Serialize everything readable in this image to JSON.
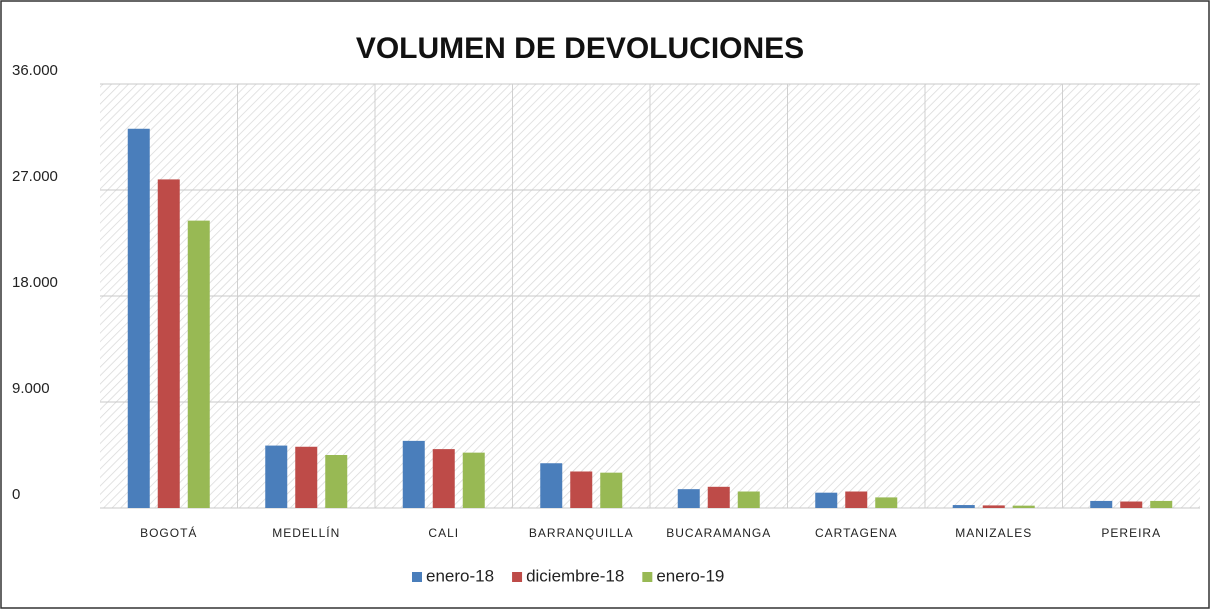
{
  "chart_data": {
    "type": "bar",
    "title": "VOLUMEN DE DEVOLUCIONES",
    "categories": [
      "BOGOTÁ",
      "MEDELLÍN",
      "CALI",
      "BARRANQUILLA",
      "BUCARAMANGA",
      "CARTAGENA",
      "MANIZALES",
      "PEREIRA"
    ],
    "series": [
      {
        "name": "enero-18",
        "color": "#4a7ebb",
        "values": [
          32200,
          5300,
          5700,
          3800,
          1600,
          1300,
          250,
          600
        ]
      },
      {
        "name": "diciembre-18",
        "color": "#be4b48",
        "values": [
          27900,
          5200,
          5000,
          3100,
          1800,
          1400,
          220,
          550
        ]
      },
      {
        "name": "enero-19",
        "color": "#98b954",
        "values": [
          24400,
          4500,
          4700,
          3000,
          1400,
          900,
          200,
          600
        ]
      }
    ],
    "ylim": [
      0,
      36000
    ],
    "yticks": [
      0,
      {
        "value": 9000,
        "label": "9.000"
      },
      {
        "value": 18000,
        "label": "18.000"
      },
      {
        "value": 27000,
        "label": "27.000"
      },
      {
        "value": 36000,
        "label": "36.000"
      }
    ],
    "grid": true,
    "legend": "bottom"
  }
}
